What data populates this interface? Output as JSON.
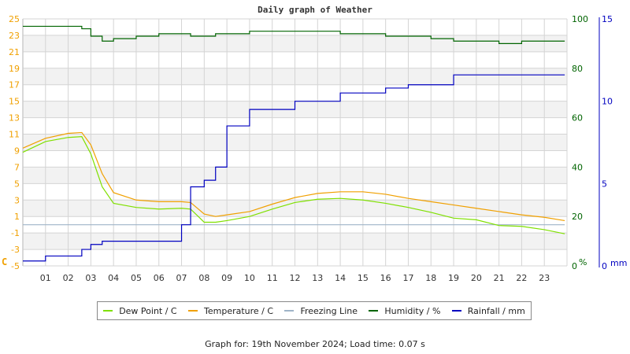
{
  "title": "Daily graph of Weather",
  "footer": "Graph for: 19th November 2024; Load time: 0.07 s",
  "colors": {
    "dew_point": "#7fe000",
    "temperature": "#f0a000",
    "freezing": "#9fb4c8",
    "humidity": "#006400",
    "rainfall": "#0000c0",
    "grid": "#d4d4d4",
    "band": "#f2f2f2",
    "temp_axis": "#f0a000"
  },
  "legend": [
    {
      "label": "Dew Point / C",
      "color": "#7fe000"
    },
    {
      "label": "Temperature / C",
      "color": "#f0a000"
    },
    {
      "label": "Freezing Line",
      "color": "#9fb4c8"
    },
    {
      "label": "Humidity / %",
      "color": "#006400"
    },
    {
      "label": "Rainfall / mm",
      "color": "#0000c0"
    }
  ],
  "chart_data": {
    "type": "line",
    "title": "Daily graph of Weather",
    "xlabel": "",
    "x_ticks": [
      "01",
      "02",
      "03",
      "04",
      "05",
      "06",
      "07",
      "08",
      "09",
      "10",
      "11",
      "12",
      "13",
      "14",
      "15",
      "16",
      "17",
      "18",
      "19",
      "20",
      "21",
      "22",
      "23"
    ],
    "axes": {
      "left": {
        "label": "C",
        "ticks": [
          25,
          23,
          21,
          19,
          17,
          15,
          13,
          11,
          9,
          7,
          5,
          3,
          1,
          -1,
          -3,
          -5
        ],
        "range": [
          -5,
          25
        ]
      },
      "right_humidity": {
        "label": "%",
        "ticks": [
          100,
          80,
          60,
          40,
          20,
          0
        ],
        "range": [
          0,
          100
        ]
      },
      "right_rain": {
        "label": "mm",
        "ticks": [
          15,
          10,
          5,
          0
        ],
        "range": [
          0,
          15
        ]
      }
    },
    "grid": true,
    "legend_position": "bottom",
    "x": [
      0,
      1,
      2,
      2.6,
      3,
      3.5,
      4,
      5,
      6,
      7,
      7.4,
      8,
      8.5,
      9,
      10,
      11,
      12,
      13,
      14,
      15,
      16,
      17,
      18,
      19,
      20,
      21,
      22,
      23,
      23.9
    ],
    "series": [
      {
        "name": "Temperature / C",
        "axis": "left",
        "values": [
          9.3,
          10.5,
          11.1,
          11.2,
          9.7,
          6.2,
          3.9,
          3.0,
          2.8,
          2.8,
          2.7,
          1.3,
          1.0,
          1.2,
          1.6,
          2.5,
          3.3,
          3.8,
          4.0,
          4.0,
          3.7,
          3.2,
          2.8,
          2.4,
          2.0,
          1.6,
          1.2,
          0.9,
          0.5
        ]
      },
      {
        "name": "Dew Point / C",
        "axis": "left",
        "values": [
          8.8,
          10.1,
          10.6,
          10.7,
          8.6,
          4.6,
          2.6,
          2.1,
          1.9,
          2.0,
          1.9,
          0.3,
          0.3,
          0.5,
          1.0,
          1.9,
          2.7,
          3.1,
          3.2,
          3.0,
          2.6,
          2.1,
          1.5,
          0.8,
          0.6,
          -0.1,
          -0.2,
          -0.6,
          -1.1
        ]
      },
      {
        "name": "Freezing Line",
        "axis": "left",
        "values": [
          0,
          0,
          0,
          0,
          0,
          0,
          0,
          0,
          0,
          0,
          0,
          0,
          0,
          0,
          0,
          0,
          0,
          0,
          0,
          0,
          0,
          0,
          0,
          0,
          0,
          0,
          0,
          0,
          0
        ]
      },
      {
        "name": "Humidity / %",
        "axis": "right_humidity",
        "values": [
          97,
          97,
          97,
          96,
          93,
          91,
          92,
          93,
          94,
          94,
          93,
          93,
          94,
          94,
          95,
          95,
          95,
          95,
          94,
          94,
          93,
          93,
          92,
          91,
          91,
          90,
          91,
          91,
          91
        ]
      },
      {
        "name": "Rainfall / mm",
        "axis": "right_rain",
        "values": [
          0.3,
          0.6,
          0.6,
          1.0,
          1.3,
          1.5,
          1.5,
          1.5,
          1.5,
          2.5,
          4.8,
          5.2,
          6.0,
          8.5,
          9.5,
          9.5,
          10.0,
          10.0,
          10.5,
          10.5,
          10.8,
          11.0,
          11.0,
          11.6,
          11.6,
          11.6,
          11.6,
          11.6,
          11.6
        ]
      }
    ]
  }
}
